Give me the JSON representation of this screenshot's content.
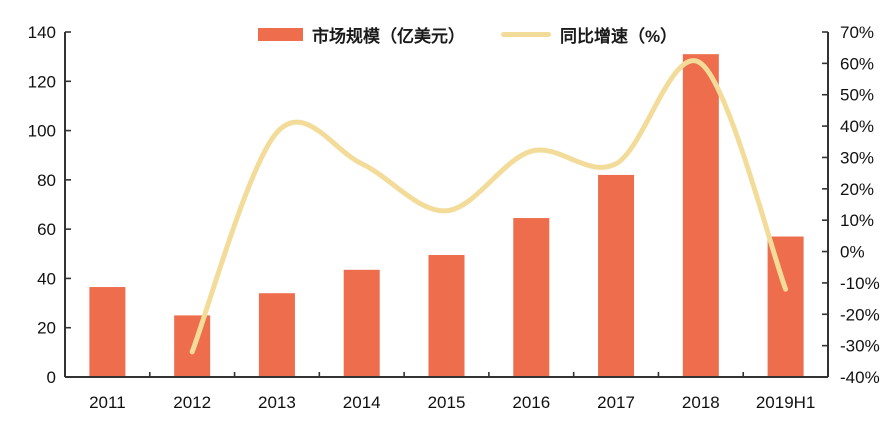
{
  "colors": {
    "bar": "#ED6D4C",
    "line": "#F3DC9A",
    "axis": "#333333",
    "text": "#111111",
    "background": "#ffffff"
  },
  "legend": {
    "items": [
      {
        "label": "市场规模（亿美元）",
        "swatch": "bar"
      },
      {
        "label": "同比增速（%）",
        "swatch": "line"
      }
    ]
  },
  "chart_data": {
    "type": "combo-bar-line",
    "title": "",
    "categories": [
      "2011",
      "2012",
      "2013",
      "2014",
      "2015",
      "2016",
      "2017",
      "2018",
      "2019H1"
    ],
    "series": [
      {
        "name": "市场规模（亿美元）",
        "type": "bar",
        "y_axis": "left",
        "color": "#ED6D4C",
        "values": [
          36.5,
          25,
          34,
          43.5,
          49.5,
          64.5,
          82,
          131,
          57
        ]
      },
      {
        "name": "同比增速（%）",
        "type": "line",
        "y_axis": "right",
        "color": "#F3DC9A",
        "smooth": true,
        "values": [
          null,
          -32,
          38,
          28,
          13,
          32,
          28,
          60,
          -12
        ]
      }
    ],
    "left_axis": {
      "min": 0,
      "max": 140,
      "step": 20,
      "tick_labels": [
        "0",
        "20",
        "40",
        "60",
        "80",
        "100",
        "120",
        "140"
      ]
    },
    "right_axis": {
      "min": -40,
      "max": 70,
      "step": 10,
      "tick_labels": [
        "-40%",
        "-30%",
        "-20%",
        "-10%",
        "0%",
        "10%",
        "20%",
        "30%",
        "40%",
        "50%",
        "60%",
        "70%"
      ]
    },
    "grid": false,
    "legend_position": "top-center"
  }
}
